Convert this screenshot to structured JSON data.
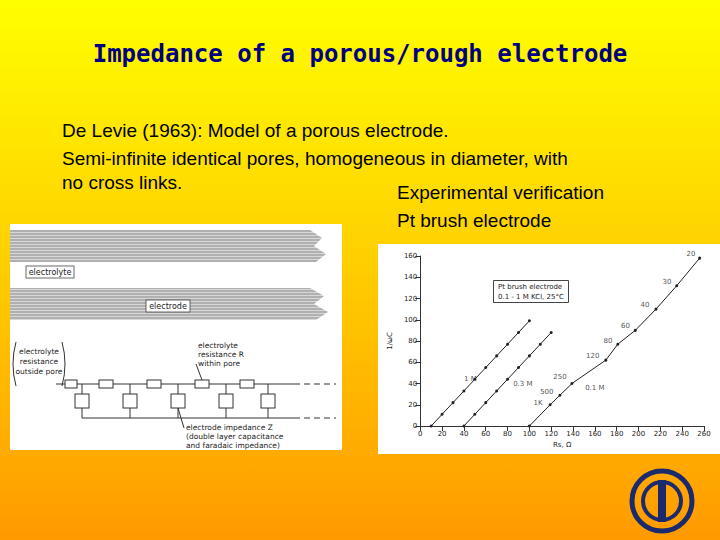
{
  "slide": {
    "title": "Impedance of a porous/rough electrode",
    "text": [
      "De Levie (1963): Model of a porous electrode.",
      "Semi-infinite identical pores, homogeneous in diameter, with",
      "no cross links."
    ],
    "caption": [
      "Experimental verification",
      "Pt brush electrode"
    ]
  },
  "diagram": {
    "electrolyte": "electrolyte",
    "electrode": "electrode",
    "outside": [
      "electrolyte",
      "resistance",
      "outside pore"
    ],
    "within": [
      "electrolyte",
      "resistance R",
      "within pore"
    ],
    "impedance": [
      "electrode impedance Z",
      "(double layer capacitance",
      "and faradaic impedance)"
    ]
  },
  "chart_data": {
    "type": "line",
    "title": "Pt brush electrode",
    "subtitle": "0.1 - 1 M KCl, 25°C",
    "x_label": "Rs, Ω",
    "y_label": "1/ωC",
    "xlim": [
      0,
      260
    ],
    "xticks": [
      0,
      20,
      40,
      60,
      80,
      100,
      120,
      140,
      160,
      180,
      200,
      220,
      240,
      260
    ],
    "ylim": [
      0,
      160
    ],
    "yticks": [
      0,
      20,
      40,
      60,
      80,
      100,
      120,
      140,
      160
    ],
    "grid": false,
    "marker": "circle",
    "series": [
      {
        "name": "1 M",
        "color": "#222222",
        "x": [
          10,
          20,
          30,
          40,
          50,
          60,
          70,
          80,
          90,
          100
        ],
        "values": [
          0,
          11,
          22,
          33,
          44,
          55,
          66,
          77,
          88,
          99
        ]
      },
      {
        "name": "0.3 M",
        "color": "#222222",
        "x": [
          40,
          50,
          60,
          70,
          80,
          90,
          100,
          110,
          120
        ],
        "values": [
          0,
          11,
          22,
          33,
          44,
          55,
          66,
          77,
          88
        ]
      },
      {
        "name": "0.1 M",
        "color": "#222222",
        "x": [
          100,
          119,
          128,
          139,
          170,
          181,
          197,
          216,
          235,
          256
        ],
        "values": [
          0,
          20,
          29,
          40,
          62,
          77,
          90,
          110,
          132,
          158
        ]
      }
    ],
    "annotations": [
      {
        "text": "1 M",
        "x": 46,
        "y": 44
      },
      {
        "text": "0.3 M",
        "x": 94,
        "y": 40
      },
      {
        "text": "0.1 M",
        "x": 160,
        "y": 36
      },
      {
        "text": "20",
        "x": 248,
        "y": 162
      },
      {
        "text": "30",
        "x": 226,
        "y": 136
      },
      {
        "text": "40",
        "x": 206,
        "y": 114
      },
      {
        "text": "60",
        "x": 188,
        "y": 94
      },
      {
        "text": "80",
        "x": 172,
        "y": 80
      },
      {
        "text": "120",
        "x": 158,
        "y": 66
      },
      {
        "text": "250",
        "x": 128,
        "y": 46
      },
      {
        "text": "500",
        "x": 116,
        "y": 32
      },
      {
        "text": "1K",
        "x": 108,
        "y": 22
      }
    ]
  }
}
